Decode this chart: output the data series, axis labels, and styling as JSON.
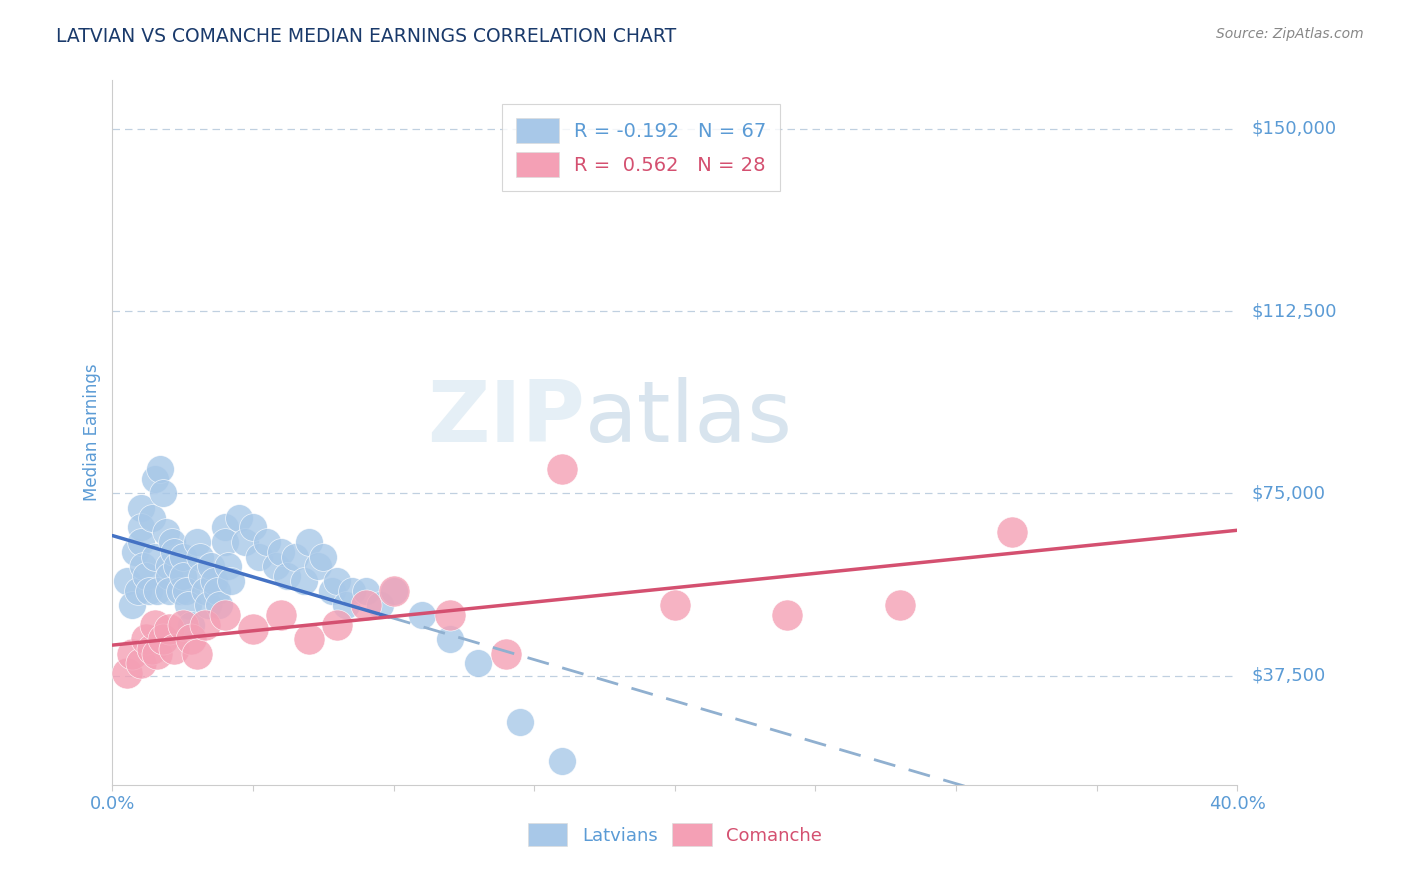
{
  "title": "LATVIAN VS COMANCHE MEDIAN EARNINGS CORRELATION CHART",
  "source_text": "Source: ZipAtlas.com",
  "ylabel": "Median Earnings",
  "xmin": 0.0,
  "xmax": 0.4,
  "ymin": 15000,
  "ymax": 160000,
  "yticks": [
    37500,
    75000,
    112500,
    150000
  ],
  "ytick_labels": [
    "$37,500",
    "$75,000",
    "$112,500",
    "$150,000"
  ],
  "xticks": [
    0.0,
    0.05,
    0.1,
    0.15,
    0.2,
    0.25,
    0.3,
    0.35,
    0.4
  ],
  "xtick_labels": [
    "0.0%",
    "",
    "",
    "",
    "",
    "",
    "",
    "",
    "40.0%"
  ],
  "title_color": "#1a3a6b",
  "axis_color": "#5b9bd5",
  "latvian_color": "#a8c8e8",
  "comanche_color": "#f4a0b5",
  "latvian_line_color": "#4472c4",
  "comanche_line_color": "#d45070",
  "dashed_line_color": "#90b0d0",
  "watermark_zip_color": "#c0d0e0",
  "watermark_atlas_color": "#a0b8cc",
  "legend_R_latvian": "R = -0.192",
  "legend_N_latvian": "N = 67",
  "legend_R_comanche": "R =  0.562",
  "legend_N_comanche": "N = 28",
  "latvian_scatter_x": [
    0.005,
    0.007,
    0.008,
    0.009,
    0.01,
    0.01,
    0.01,
    0.011,
    0.012,
    0.013,
    0.014,
    0.015,
    0.015,
    0.016,
    0.017,
    0.018,
    0.019,
    0.02,
    0.02,
    0.02,
    0.021,
    0.022,
    0.023,
    0.024,
    0.025,
    0.025,
    0.026,
    0.027,
    0.028,
    0.03,
    0.031,
    0.032,
    0.033,
    0.034,
    0.035,
    0.036,
    0.037,
    0.038,
    0.04,
    0.04,
    0.041,
    0.042,
    0.045,
    0.047,
    0.05,
    0.052,
    0.055,
    0.058,
    0.06,
    0.062,
    0.065,
    0.068,
    0.07,
    0.073,
    0.075,
    0.078,
    0.08,
    0.083,
    0.085,
    0.09,
    0.095,
    0.1,
    0.11,
    0.12,
    0.13,
    0.145,
    0.16
  ],
  "latvian_scatter_y": [
    57000,
    52000,
    63000,
    55000,
    72000,
    68000,
    65000,
    60000,
    58000,
    55000,
    70000,
    78000,
    62000,
    55000,
    80000,
    75000,
    67000,
    60000,
    58000,
    55000,
    65000,
    63000,
    60000,
    55000,
    62000,
    58000,
    55000,
    52000,
    48000,
    65000,
    62000,
    58000,
    55000,
    52000,
    60000,
    57000,
    55000,
    52000,
    68000,
    65000,
    60000,
    57000,
    70000,
    65000,
    68000,
    62000,
    65000,
    60000,
    63000,
    58000,
    62000,
    57000,
    65000,
    60000,
    62000,
    55000,
    57000,
    52000,
    55000,
    55000,
    52000,
    55000,
    50000,
    45000,
    40000,
    28000,
    20000
  ],
  "comanche_scatter_x": [
    0.005,
    0.007,
    0.01,
    0.012,
    0.014,
    0.015,
    0.016,
    0.018,
    0.02,
    0.022,
    0.025,
    0.028,
    0.03,
    0.033,
    0.04,
    0.05,
    0.06,
    0.07,
    0.08,
    0.09,
    0.1,
    0.12,
    0.14,
    0.16,
    0.2,
    0.24,
    0.28,
    0.32
  ],
  "comanche_scatter_y": [
    38000,
    42000,
    40000,
    45000,
    43000,
    48000,
    42000,
    45000,
    47000,
    43000,
    48000,
    45000,
    42000,
    48000,
    50000,
    47000,
    50000,
    45000,
    48000,
    52000,
    55000,
    50000,
    42000,
    80000,
    52000,
    50000,
    52000,
    67000
  ],
  "background_color": "#ffffff",
  "grid_color": "#c0d0e0",
  "figsize": [
    14.06,
    8.92
  ],
  "dpi": 100
}
